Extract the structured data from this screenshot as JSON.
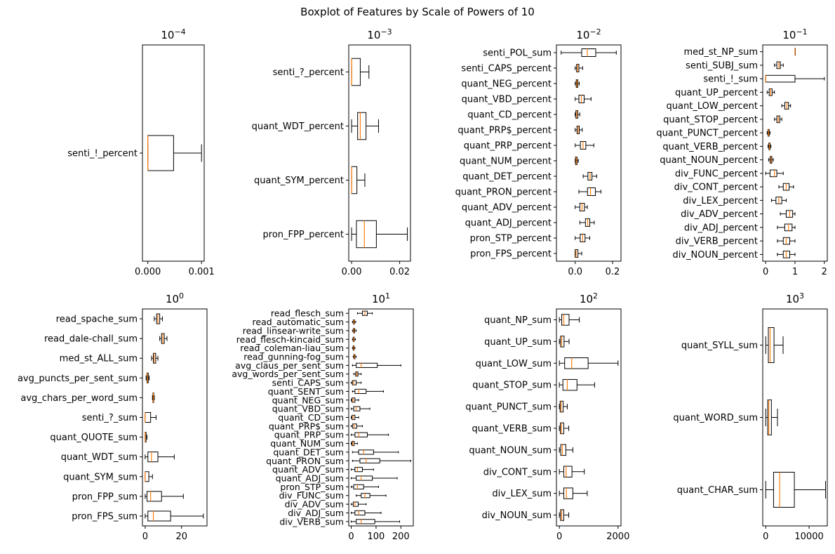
{
  "figure": {
    "title": "Boxplot of Features by Scale of Powers of 10"
  },
  "colors": {
    "box_edge": "#000000",
    "median": "#ff7f0e",
    "background": "#ffffff",
    "frame": "#000000"
  },
  "chart_data": [
    {
      "type": "boxplot",
      "orientation": "horizontal",
      "title_base": "10",
      "title_exp": "−4",
      "xlim": [
        -0.0001,
        0.00105
      ],
      "xticks": [
        0.0,
        0.001
      ],
      "xtick_labels": [
        "0.000",
        "0.001"
      ],
      "series": [
        {
          "label": "senti_!_percent",
          "whislo": 0,
          "q1": 0,
          "med": 0,
          "q3": 0.00048,
          "whishi": 0.001
        }
      ]
    },
    {
      "type": "boxplot",
      "orientation": "horizontal",
      "title_base": "10",
      "title_exp": "−3",
      "xlim": [
        -0.0012,
        0.0245
      ],
      "xticks": [
        0.0,
        0.02
      ],
      "xtick_labels": [
        "0.00",
        "0.02"
      ],
      "series": [
        {
          "label": "senti_?_percent",
          "whislo": 0,
          "q1": 0,
          "med": 0,
          "q3": 0.0036,
          "whishi": 0.0072
        },
        {
          "label": "quant_WDT_percent",
          "whislo": 0.0,
          "q1": 0.0025,
          "med": 0.0036,
          "q3": 0.006,
          "whishi": 0.0112
        },
        {
          "label": "quant_SYM_percent",
          "whislo": 0,
          "q1": 0,
          "med": 0,
          "q3": 0.0022,
          "whishi": 0.0055
        },
        {
          "label": "pron_FPP_percent",
          "whislo": 0,
          "q1": 0.002,
          "med": 0.0053,
          "q3": 0.0103,
          "whishi": 0.0232
        }
      ]
    },
    {
      "type": "boxplot",
      "orientation": "horizontal",
      "title_base": "10",
      "title_exp": "−2",
      "xlim": [
        -0.1,
        0.245
      ],
      "xticks": [
        0.0,
        0.2
      ],
      "xtick_labels": [
        "0.0",
        "0.2"
      ],
      "series": [
        {
          "label": "senti_POL_sum",
          "whislo": -0.075,
          "q1": 0.035,
          "med": 0.065,
          "q3": 0.11,
          "whishi": 0.22
        },
        {
          "label": "senti_CAPS_percent",
          "whislo": 0.0,
          "q1": 0.008,
          "med": 0.013,
          "q3": 0.02,
          "whishi": 0.04
        },
        {
          "label": "quant_NEG_percent",
          "whislo": 0.0,
          "q1": 0.006,
          "med": 0.01,
          "q3": 0.014,
          "whishi": 0.022
        },
        {
          "label": "quant_VBD_percent",
          "whislo": 0.0,
          "q1": 0.02,
          "med": 0.033,
          "q3": 0.048,
          "whishi": 0.085
        },
        {
          "label": "quant_CD_percent",
          "whislo": 0.0,
          "q1": 0.004,
          "med": 0.008,
          "q3": 0.014,
          "whishi": 0.025
        },
        {
          "label": "quant_PRP$_percent",
          "whislo": 0.0,
          "q1": 0.01,
          "med": 0.016,
          "q3": 0.022,
          "whishi": 0.038
        },
        {
          "label": "quant_PRP_percent",
          "whislo": 0.0,
          "q1": 0.028,
          "med": 0.042,
          "q3": 0.057,
          "whishi": 0.1
        },
        {
          "label": "quant_NUM_percent",
          "whislo": 0.0,
          "q1": 0.002,
          "med": 0.006,
          "q3": 0.01,
          "whishi": 0.017
        },
        {
          "label": "quant_DET_percent",
          "whislo": 0.043,
          "q1": 0.068,
          "med": 0.08,
          "q3": 0.09,
          "whishi": 0.115
        },
        {
          "label": "quant_PRON_percent",
          "whislo": 0.02,
          "q1": 0.066,
          "med": 0.082,
          "q3": 0.108,
          "whishi": 0.138
        },
        {
          "label": "quant_ADV_percent",
          "whislo": 0.0,
          "q1": 0.025,
          "med": 0.037,
          "q3": 0.05,
          "whishi": 0.065
        },
        {
          "label": "quant_ADJ_percent",
          "whislo": 0.025,
          "q1": 0.055,
          "med": 0.067,
          "q3": 0.078,
          "whishi": 0.102
        },
        {
          "label": "pron_STP_percent",
          "whislo": 0.0,
          "q1": 0.027,
          "med": 0.04,
          "q3": 0.053,
          "whishi": 0.078
        },
        {
          "label": "pron_FPS_percent",
          "whislo": 0.0,
          "q1": 0.0,
          "med": 0.005,
          "q3": 0.015,
          "whishi": 0.035
        }
      ]
    },
    {
      "type": "boxplot",
      "orientation": "horizontal",
      "title_base": "10",
      "title_exp": "−1",
      "xlim": [
        -0.1,
        2.1
      ],
      "xticks": [
        0,
        1,
        2
      ],
      "xtick_labels": [
        "0",
        "1",
        "2"
      ],
      "series": [
        {
          "label": "med_st_NP_sum",
          "whislo": 1.0,
          "q1": 1.0,
          "med": 1.0,
          "q3": 1.0,
          "whishi": 1.0
        },
        {
          "label": "senti_SUBJ_sum",
          "whislo": 0.3,
          "q1": 0.38,
          "med": 0.45,
          "q3": 0.5,
          "whishi": 0.6
        },
        {
          "label": "senti_!_sum",
          "whislo": 0.0,
          "q1": 0.0,
          "med": 0.0,
          "q3": 1.0,
          "whishi": 2.0
        },
        {
          "label": "quant_UP_percent",
          "whislo": 0.05,
          "q1": 0.12,
          "med": 0.17,
          "q3": 0.22,
          "whishi": 0.3
        },
        {
          "label": "quant_LOW_percent",
          "whislo": 0.55,
          "q1": 0.65,
          "med": 0.72,
          "q3": 0.78,
          "whishi": 0.85
        },
        {
          "label": "quant_STOP_percent",
          "whislo": 0.3,
          "q1": 0.38,
          "med": 0.43,
          "q3": 0.48,
          "whishi": 0.55
        },
        {
          "label": "quant_PUNCT_percent",
          "whislo": 0.05,
          "q1": 0.08,
          "med": 0.1,
          "q3": 0.12,
          "whishi": 0.15
        },
        {
          "label": "quant_VERB_percent",
          "whislo": 0.08,
          "q1": 0.11,
          "med": 0.13,
          "q3": 0.15,
          "whishi": 0.18
        },
        {
          "label": "quant_NOUN_percent",
          "whislo": 0.1,
          "q1": 0.15,
          "med": 0.18,
          "q3": 0.21,
          "whishi": 0.26
        },
        {
          "label": "div_FUNC_percent",
          "whislo": 0.0,
          "q1": 0.15,
          "med": 0.3,
          "q3": 0.38,
          "whishi": 0.6
        },
        {
          "label": "div_CONT_percent",
          "whislo": 0.45,
          "q1": 0.6,
          "med": 0.7,
          "q3": 0.8,
          "whishi": 0.95
        },
        {
          "label": "div_LEX_percent",
          "whislo": 0.2,
          "q1": 0.35,
          "med": 0.45,
          "q3": 0.55,
          "whishi": 0.7
        },
        {
          "label": "div_ADV_percent",
          "whislo": 0.5,
          "q1": 0.7,
          "med": 0.82,
          "q3": 0.92,
          "whishi": 1.0
        },
        {
          "label": "div_ADJ_percent",
          "whislo": 0.4,
          "q1": 0.65,
          "med": 0.78,
          "q3": 0.9,
          "whishi": 1.0
        },
        {
          "label": "div_VERB_percent",
          "whislo": 0.4,
          "q1": 0.6,
          "med": 0.7,
          "q3": 0.82,
          "whishi": 1.0
        },
        {
          "label": "div_NOUN_percent",
          "whislo": 0.4,
          "q1": 0.6,
          "med": 0.7,
          "q3": 0.82,
          "whishi": 1.0
        }
      ]
    },
    {
      "type": "boxplot",
      "orientation": "horizontal",
      "title_base": "10",
      "title_exp": "0",
      "xlim": [
        -1.5,
        34
      ],
      "xticks": [
        0,
        20
      ],
      "xtick_labels": [
        "0",
        "20"
      ],
      "series": [
        {
          "label": "read_spache_sum",
          "whislo": 5,
          "q1": 6.3,
          "med": 7.0,
          "q3": 8.0,
          "whishi": 9.5
        },
        {
          "label": "read_dale-chall_sum",
          "whislo": 8,
          "q1": 9.0,
          "med": 9.7,
          "q3": 10.5,
          "whishi": 12
        },
        {
          "label": "med_st_ALL_sum",
          "whislo": 3.5,
          "q1": 4.5,
          "med": 5.0,
          "q3": 5.8,
          "whishi": 7.0
        },
        {
          "label": "avg_puncts_per_sent_sum",
          "whislo": 0.5,
          "q1": 1.0,
          "med": 1.3,
          "q3": 1.7,
          "whishi": 2.2
        },
        {
          "label": "avg_chars_per_word_sum",
          "whislo": 4.0,
          "q1": 4.3,
          "med": 4.5,
          "q3": 4.7,
          "whishi": 5.0
        },
        {
          "label": "senti_?_sum",
          "whislo": 0,
          "q1": 0,
          "med": 0,
          "q3": 3,
          "whishi": 6
        },
        {
          "label": "quant_QUOTE_sum",
          "whislo": 0,
          "q1": 0,
          "med": 0,
          "q3": 0.5,
          "whishi": 1
        },
        {
          "label": "quant_WDT_sum",
          "whislo": 0,
          "q1": 1.5,
          "med": 3.5,
          "q3": 7,
          "whishi": 16
        },
        {
          "label": "quant_SYM_sum",
          "whislo": 0,
          "q1": 0,
          "med": 0,
          "q3": 2,
          "whishi": 4
        },
        {
          "label": "pron_FPP_sum",
          "whislo": 0,
          "q1": 1,
          "med": 3,
          "q3": 9,
          "whishi": 21
        },
        {
          "label": "pron_FPS_sum",
          "whislo": 0,
          "q1": 1.5,
          "med": 4.5,
          "q3": 14,
          "whishi": 32
        }
      ]
    },
    {
      "type": "boxplot",
      "orientation": "horizontal",
      "title_base": "10",
      "title_exp": "1",
      "xlim": [
        -10,
        250
      ],
      "xticks": [
        0,
        100,
        200
      ],
      "xtick_labels": [
        "0",
        "100",
        "200"
      ],
      "series": [
        {
          "label": "read_flesch_sum",
          "whislo": 25,
          "q1": 45,
          "med": 55,
          "q3": 65,
          "whishi": 85
        },
        {
          "label": "read_automatic_sum",
          "whislo": 5,
          "q1": 9,
          "med": 11,
          "q3": 13,
          "whishi": 18
        },
        {
          "label": "read_linsear-write_sum",
          "whislo": 5,
          "q1": 9,
          "med": 11,
          "q3": 14,
          "whishi": 20
        },
        {
          "label": "read_flesch-kincaid_sum",
          "whislo": 5,
          "q1": 8,
          "med": 10,
          "q3": 12,
          "whishi": 17
        },
        {
          "label": "read_coleman-liau_sum",
          "whislo": 5,
          "q1": 8,
          "med": 10,
          "q3": 11.5,
          "whishi": 15
        },
        {
          "label": "read_gunning-fog_sum",
          "whislo": 8,
          "q1": 11,
          "med": 13,
          "q3": 15,
          "whishi": 20
        },
        {
          "label": "avg_claus_per_sent_sum",
          "whislo": 5,
          "q1": 20,
          "med": 40,
          "q3": 105,
          "whishi": 200
        },
        {
          "label": "avg_words_per_sent_sum",
          "whislo": 10,
          "q1": 18,
          "med": 22,
          "q3": 27,
          "whishi": 40
        },
        {
          "label": "senti_CAPS_sum",
          "whislo": 0,
          "q1": 5,
          "med": 10,
          "q3": 20,
          "whishi": 40
        },
        {
          "label": "quant_SENT_sum",
          "whislo": 5,
          "q1": 15,
          "med": 30,
          "q3": 60,
          "whishi": 130
        },
        {
          "label": "quant_NEG_sum",
          "whislo": 0,
          "q1": 3,
          "med": 8,
          "q3": 15,
          "whishi": 30
        },
        {
          "label": "quant_VBD_sum",
          "whislo": 0,
          "q1": 10,
          "med": 20,
          "q3": 35,
          "whishi": 75
        },
        {
          "label": "quant_CD_sum",
          "whislo": 0,
          "q1": 3,
          "med": 8,
          "q3": 15,
          "whishi": 30
        },
        {
          "label": "quant_PRP$_sum",
          "whislo": 0,
          "q1": 6,
          "med": 12,
          "q3": 22,
          "whishi": 45
        },
        {
          "label": "quant_PRP_sum",
          "whislo": 0,
          "q1": 15,
          "med": 30,
          "q3": 65,
          "whishi": 150
        },
        {
          "label": "quant_NUM_sum",
          "whislo": 0,
          "q1": 3,
          "med": 6,
          "q3": 12,
          "whishi": 25
        },
        {
          "label": "quant_DET_sum",
          "whislo": 5,
          "q1": 30,
          "med": 50,
          "q3": 90,
          "whishi": 190
        },
        {
          "label": "quant_PRON_sum",
          "whislo": 5,
          "q1": 35,
          "med": 60,
          "q3": 115,
          "whishi": 240
        },
        {
          "label": "quant_ADV_sum",
          "whislo": 0,
          "q1": 15,
          "med": 25,
          "q3": 45,
          "whishi": 90
        },
        {
          "label": "quant_ADJ_sum",
          "whislo": 0,
          "q1": 20,
          "med": 40,
          "q3": 85,
          "whishi": 185
        },
        {
          "label": "pron_STP_sum",
          "whislo": 0,
          "q1": 10,
          "med": 25,
          "q3": 50,
          "whishi": 110
        },
        {
          "label": "div_FUNC_sum",
          "whislo": 20,
          "q1": 40,
          "med": 55,
          "q3": 75,
          "whishi": 140
        },
        {
          "label": "div_ADV_sum",
          "whislo": 0,
          "q1": 8,
          "med": 15,
          "q3": 28,
          "whishi": 60
        },
        {
          "label": "div_ADJ_sum",
          "whislo": 0,
          "q1": 15,
          "med": 30,
          "q3": 55,
          "whishi": 120
        },
        {
          "label": "div_VERB_sum",
          "whislo": 0,
          "q1": 20,
          "med": 40,
          "q3": 95,
          "whishi": 195
        }
      ]
    },
    {
      "type": "boxplot",
      "orientation": "horizontal",
      "title_base": "10",
      "title_exp": "2",
      "xlim": [
        -100,
        2100
      ],
      "xticks": [
        0,
        2000
      ],
      "xtick_labels": [
        "0",
        "2000"
      ],
      "series": [
        {
          "label": "quant_NP_sum",
          "whislo": 0,
          "q1": 80,
          "med": 150,
          "q3": 330,
          "whishi": 680
        },
        {
          "label": "quant_UP_sum",
          "whislo": 0,
          "q1": 40,
          "med": 80,
          "q3": 160,
          "whishi": 330
        },
        {
          "label": "quant_LOW_sum",
          "whislo": 0,
          "q1": 180,
          "med": 420,
          "q3": 980,
          "whishi": 2000
        },
        {
          "label": "quant_STOP_sum",
          "whislo": 0,
          "q1": 120,
          "med": 270,
          "q3": 600,
          "whishi": 1200
        },
        {
          "label": "quant_PUNCT_sum",
          "whislo": 0,
          "q1": 25,
          "med": 60,
          "q3": 130,
          "whishi": 270
        },
        {
          "label": "quant_VERB_sum",
          "whislo": 0,
          "q1": 35,
          "med": 70,
          "q3": 150,
          "whishi": 320
        },
        {
          "label": "quant_NOUN_sum",
          "whislo": 0,
          "q1": 45,
          "med": 100,
          "q3": 220,
          "whishi": 460
        },
        {
          "label": "div_CONT_sum",
          "whislo": 0,
          "q1": 150,
          "med": 230,
          "q3": 430,
          "whishi": 850
        },
        {
          "label": "div_LEX_sum",
          "whislo": 0,
          "q1": 150,
          "med": 240,
          "q3": 460,
          "whishi": 950
        },
        {
          "label": "div_NOUN_sum",
          "whislo": 0,
          "q1": 40,
          "med": 80,
          "q3": 150,
          "whishi": 320
        }
      ]
    },
    {
      "type": "boxplot",
      "orientation": "horizontal",
      "title_base": "10",
      "title_exp": "3",
      "xlim": [
        -700,
        14200
      ],
      "xticks": [
        0,
        10000
      ],
      "xtick_labels": [
        "0",
        "10000"
      ],
      "series": [
        {
          "label": "quant_SYLL_sum",
          "whislo": 0,
          "q1": 600,
          "med": 1000,
          "q3": 1900,
          "whishi": 4000
        },
        {
          "label": "quant_WORD_sum",
          "whislo": 0,
          "q1": 450,
          "med": 700,
          "q3": 1300,
          "whishi": 2700
        },
        {
          "label": "quant_CHAR_sum",
          "whislo": 0,
          "q1": 1800,
          "med": 3200,
          "q3": 6600,
          "whishi": 13800
        }
      ]
    }
  ]
}
